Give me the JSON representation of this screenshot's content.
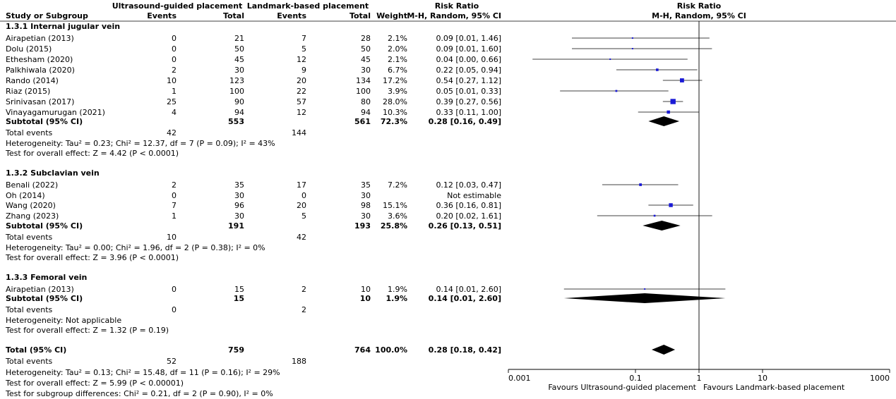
{
  "header": {
    "group1": "Ultrasound-guided placement",
    "group2": "Landmark-based placement",
    "effect_title": "Risk Ratio",
    "effect_sub": "M-H, Random, 95% CI",
    "study_col": "Study or Subgroup",
    "events": "Events",
    "total": "Total",
    "weight": "Weight"
  },
  "subgroups": [
    {
      "title": "1.3.1 Internal jugular vein",
      "studies": [
        {
          "name": "Airapetian (2013)",
          "e1": "0",
          "n1": "21",
          "e2": "7",
          "n2": "28",
          "w": "2.1%",
          "ci": "0.09 [0.01, 1.46]",
          "rr": 0.09,
          "lo": 0.01,
          "hi": 1.46,
          "wt": 2.1
        },
        {
          "name": "Dolu (2015)",
          "e1": "0",
          "n1": "50",
          "e2": "5",
          "n2": "50",
          "w": "2.0%",
          "ci": "0.09 [0.01, 1.60]",
          "rr": 0.09,
          "lo": 0.01,
          "hi": 1.6,
          "wt": 2.0
        },
        {
          "name": "Ethesham (2020)",
          "e1": "0",
          "n1": "45",
          "e2": "12",
          "n2": "45",
          "w": "2.1%",
          "ci": "0.04 [0.00, 0.66]",
          "rr": 0.04,
          "lo": 0.0024,
          "hi": 0.66,
          "wt": 2.1
        },
        {
          "name": "Palkhiwala (2020)",
          "e1": "2",
          "n1": "30",
          "e2": "9",
          "n2": "30",
          "w": "6.7%",
          "ci": "0.22 [0.05, 0.94]",
          "rr": 0.22,
          "lo": 0.05,
          "hi": 0.94,
          "wt": 6.7
        },
        {
          "name": "Rando (2014)",
          "e1": "10",
          "n1": "123",
          "e2": "20",
          "n2": "134",
          "w": "17.2%",
          "ci": "0.54 [0.27, 1.12]",
          "rr": 0.54,
          "lo": 0.27,
          "hi": 1.12,
          "wt": 17.2
        },
        {
          "name": "Riaz (2015)",
          "e1": "1",
          "n1": "100",
          "e2": "22",
          "n2": "100",
          "w": "3.9%",
          "ci": "0.05 [0.01, 0.33]",
          "rr": 0.05,
          "lo": 0.0065,
          "hi": 0.33,
          "wt": 3.9
        },
        {
          "name": "Srinivasan (2017)",
          "e1": "25",
          "n1": "90",
          "e2": "57",
          "n2": "80",
          "w": "28.0%",
          "ci": "0.39 [0.27, 0.56]",
          "rr": 0.39,
          "lo": 0.27,
          "hi": 0.56,
          "wt": 28.0
        },
        {
          "name": "Vinayagamurugan (2021)",
          "e1": "4",
          "n1": "94",
          "e2": "12",
          "n2": "94",
          "w": "10.3%",
          "ci": "0.33 [0.11, 1.00]",
          "rr": 0.33,
          "lo": 0.11,
          "hi": 1.0,
          "wt": 10.3
        }
      ],
      "subtotal": {
        "label": "Subtotal (95% CI)",
        "n1": "553",
        "n2": "561",
        "w": "72.3%",
        "ci": "0.28 [0.16, 0.49]",
        "rr": 0.28,
        "lo": 0.16,
        "hi": 0.49
      },
      "total_events": {
        "label": "Total events",
        "e1": "42",
        "e2": "144"
      },
      "heterogeneity": "Heterogeneity: Tau² = 0.23; Chi² = 12.37, df = 7 (P = 0.09); I² = 43%",
      "overall": "Test for overall effect: Z = 4.42 (P < 0.0001)"
    },
    {
      "title": "1.3.2 Subclavian vein",
      "studies": [
        {
          "name": "Benali (2022)",
          "e1": "2",
          "n1": "35",
          "e2": "17",
          "n2": "35",
          "w": "7.2%",
          "ci": "0.12 [0.03, 0.47]",
          "rr": 0.12,
          "lo": 0.03,
          "hi": 0.47,
          "wt": 7.2
        },
        {
          "name": "Oh (2014)",
          "e1": "0",
          "n1": "30",
          "e2": "0",
          "n2": "30",
          "w": "",
          "ci": "Not estimable",
          "rr": null,
          "lo": null,
          "hi": null,
          "wt": 0
        },
        {
          "name": "Wang (2020)",
          "e1": "7",
          "n1": "96",
          "e2": "20",
          "n2": "98",
          "w": "15.1%",
          "ci": "0.36 [0.16, 0.81]",
          "rr": 0.36,
          "lo": 0.16,
          "hi": 0.81,
          "wt": 15.1
        },
        {
          "name": "Zhang (2023)",
          "e1": "1",
          "n1": "30",
          "e2": "5",
          "n2": "30",
          "w": "3.6%",
          "ci": "0.20 [0.02, 1.61]",
          "rr": 0.2,
          "lo": 0.025,
          "hi": 1.61,
          "wt": 3.6
        }
      ],
      "subtotal": {
        "label": "Subtotal (95% CI)",
        "n1": "191",
        "n2": "193",
        "w": "25.8%",
        "ci": "0.26 [0.13, 0.51]",
        "rr": 0.26,
        "lo": 0.13,
        "hi": 0.51
      },
      "total_events": {
        "label": "Total events",
        "e1": "10",
        "e2": "42"
      },
      "heterogeneity": "Heterogeneity: Tau² = 0.00; Chi² = 1.96, df = 2 (P = 0.38); I² = 0%",
      "overall": "Test for overall effect: Z = 3.96 (P < 0.0001)"
    },
    {
      "title": "1.3.3 Femoral vein",
      "studies": [
        {
          "name": "Airapetian (2013)",
          "e1": "0",
          "n1": "15",
          "e2": "2",
          "n2": "10",
          "w": "1.9%",
          "ci": "0.14 [0.01, 2.60]",
          "rr": 0.14,
          "lo": 0.0075,
          "hi": 2.6,
          "wt": 1.9
        }
      ],
      "subtotal": {
        "label": "Subtotal (95% CI)",
        "n1": "15",
        "n2": "10",
        "w": "1.9%",
        "ci": "0.14 [0.01, 2.60]",
        "rr": 0.14,
        "lo": 0.0075,
        "hi": 2.6
      },
      "total_events": {
        "label": "Total events",
        "e1": "0",
        "e2": "2"
      },
      "heterogeneity": "Heterogeneity: Not applicable",
      "overall": "Test for overall effect: Z = 1.32 (P = 0.19)"
    }
  ],
  "total": {
    "label": "Total (95% CI)",
    "n1": "759",
    "n2": "764",
    "w": "100.0%",
    "ci": "0.28 [0.18, 0.42]",
    "rr": 0.28,
    "lo": 0.18,
    "hi": 0.42
  },
  "total_events": {
    "label": "Total events",
    "e1": "52",
    "e2": "188"
  },
  "footer": [
    "Heterogeneity: Tau² = 0.13; Chi² = 15.48, df = 11 (P = 0.16); I² = 29%",
    "Test for overall effect: Z = 5.99 (P < 0.00001)",
    "Test for subgroup differences: Chi² = 0.21, df = 2 (P = 0.90), I² = 0%"
  ],
  "axis": {
    "scale": "log",
    "range": [
      0.001,
      1000
    ],
    "ticks": [
      {
        "value": 0.001,
        "label": "0.001"
      },
      {
        "value": 0.1,
        "label": "0.1"
      },
      {
        "value": 1,
        "label": "1"
      },
      {
        "value": 10,
        "label": "10"
      },
      {
        "value": 1000,
        "label": "1000"
      }
    ],
    "favours_left": "Favours Ultrasound-guided placement",
    "favours_right": "Favours Landmark-based placement"
  },
  "colors": {
    "study_marker": "#1a1ad6",
    "diamond": "#000000",
    "lines": "#000000"
  },
  "chart_data": {
    "type": "forest",
    "title": "Risk Ratio",
    "subtitle": "M-H, Random, 95% CI",
    "xscale": "log",
    "xlim": [
      0.001,
      1000
    ],
    "reference_line": 1,
    "studies": [
      {
        "subgroup": "1.3.1 Internal jugular vein",
        "name": "Airapetian (2013)",
        "rr": 0.09,
        "lo": 0.01,
        "hi": 1.46
      },
      {
        "subgroup": "1.3.1 Internal jugular vein",
        "name": "Dolu (2015)",
        "rr": 0.09,
        "lo": 0.01,
        "hi": 1.6
      },
      {
        "subgroup": "1.3.1 Internal jugular vein",
        "name": "Ethesham (2020)",
        "rr": 0.04,
        "lo": 0.0,
        "hi": 0.66
      },
      {
        "subgroup": "1.3.1 Internal jugular vein",
        "name": "Palkhiwala (2020)",
        "rr": 0.22,
        "lo": 0.05,
        "hi": 0.94
      },
      {
        "subgroup": "1.3.1 Internal jugular vein",
        "name": "Rando (2014)",
        "rr": 0.54,
        "lo": 0.27,
        "hi": 1.12
      },
      {
        "subgroup": "1.3.1 Internal jugular vein",
        "name": "Riaz (2015)",
        "rr": 0.05,
        "lo": 0.01,
        "hi": 0.33
      },
      {
        "subgroup": "1.3.1 Internal jugular vein",
        "name": "Srinivasan (2017)",
        "rr": 0.39,
        "lo": 0.27,
        "hi": 0.56
      },
      {
        "subgroup": "1.3.1 Internal jugular vein",
        "name": "Vinayagamurugan (2021)",
        "rr": 0.33,
        "lo": 0.11,
        "hi": 1.0
      },
      {
        "subgroup": "1.3.2 Subclavian vein",
        "name": "Benali (2022)",
        "rr": 0.12,
        "lo": 0.03,
        "hi": 0.47
      },
      {
        "subgroup": "1.3.2 Subclavian vein",
        "name": "Oh (2014)",
        "rr": null,
        "lo": null,
        "hi": null
      },
      {
        "subgroup": "1.3.2 Subclavian vein",
        "name": "Wang (2020)",
        "rr": 0.36,
        "lo": 0.16,
        "hi": 0.81
      },
      {
        "subgroup": "1.3.2 Subclavian vein",
        "name": "Zhang (2023)",
        "rr": 0.2,
        "lo": 0.02,
        "hi": 1.61
      },
      {
        "subgroup": "1.3.3 Femoral vein",
        "name": "Airapetian (2013)",
        "rr": 0.14,
        "lo": 0.01,
        "hi": 2.6
      }
    ],
    "pooled": [
      {
        "name": "1.3.1 Subtotal",
        "rr": 0.28,
        "lo": 0.16,
        "hi": 0.49
      },
      {
        "name": "1.3.2 Subtotal",
        "rr": 0.26,
        "lo": 0.13,
        "hi": 0.51
      },
      {
        "name": "1.3.3 Subtotal",
        "rr": 0.14,
        "lo": 0.01,
        "hi": 2.6
      },
      {
        "name": "Total (95% CI)",
        "rr": 0.28,
        "lo": 0.18,
        "hi": 0.42
      }
    ]
  }
}
